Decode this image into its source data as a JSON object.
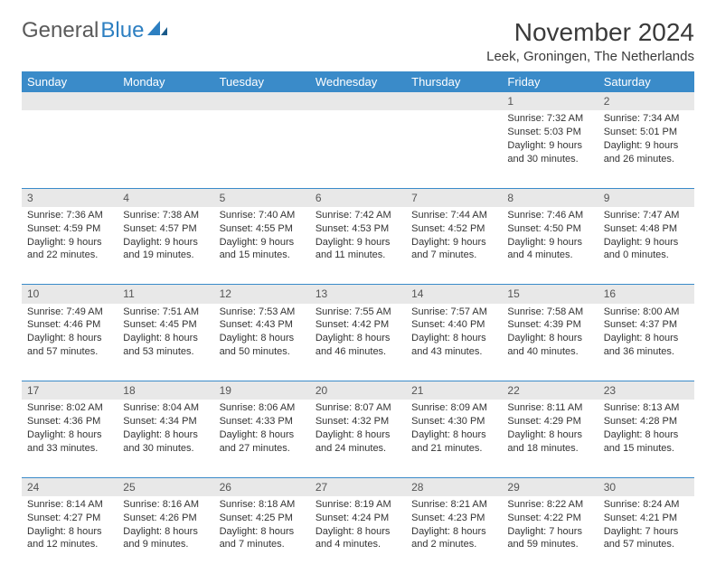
{
  "logo": {
    "text1": "General",
    "text2": "Blue"
  },
  "title": "November 2024",
  "location": "Leek, Groningen, The Netherlands",
  "colors": {
    "header_bg": "#3a8bc9",
    "header_text": "#ffffff",
    "daynum_bg": "#e8e8e8",
    "border": "#3a8bc9",
    "text": "#333333"
  },
  "weekdays": [
    "Sunday",
    "Monday",
    "Tuesday",
    "Wednesday",
    "Thursday",
    "Friday",
    "Saturday"
  ],
  "weeks": [
    [
      null,
      null,
      null,
      null,
      null,
      {
        "n": "1",
        "sr": "7:32 AM",
        "ss": "5:03 PM",
        "dl": "9 hours and 30 minutes."
      },
      {
        "n": "2",
        "sr": "7:34 AM",
        "ss": "5:01 PM",
        "dl": "9 hours and 26 minutes."
      }
    ],
    [
      {
        "n": "3",
        "sr": "7:36 AM",
        "ss": "4:59 PM",
        "dl": "9 hours and 22 minutes."
      },
      {
        "n": "4",
        "sr": "7:38 AM",
        "ss": "4:57 PM",
        "dl": "9 hours and 19 minutes."
      },
      {
        "n": "5",
        "sr": "7:40 AM",
        "ss": "4:55 PM",
        "dl": "9 hours and 15 minutes."
      },
      {
        "n": "6",
        "sr": "7:42 AM",
        "ss": "4:53 PM",
        "dl": "9 hours and 11 minutes."
      },
      {
        "n": "7",
        "sr": "7:44 AM",
        "ss": "4:52 PM",
        "dl": "9 hours and 7 minutes."
      },
      {
        "n": "8",
        "sr": "7:46 AM",
        "ss": "4:50 PM",
        "dl": "9 hours and 4 minutes."
      },
      {
        "n": "9",
        "sr": "7:47 AM",
        "ss": "4:48 PM",
        "dl": "9 hours and 0 minutes."
      }
    ],
    [
      {
        "n": "10",
        "sr": "7:49 AM",
        "ss": "4:46 PM",
        "dl": "8 hours and 57 minutes."
      },
      {
        "n": "11",
        "sr": "7:51 AM",
        "ss": "4:45 PM",
        "dl": "8 hours and 53 minutes."
      },
      {
        "n": "12",
        "sr": "7:53 AM",
        "ss": "4:43 PM",
        "dl": "8 hours and 50 minutes."
      },
      {
        "n": "13",
        "sr": "7:55 AM",
        "ss": "4:42 PM",
        "dl": "8 hours and 46 minutes."
      },
      {
        "n": "14",
        "sr": "7:57 AM",
        "ss": "4:40 PM",
        "dl": "8 hours and 43 minutes."
      },
      {
        "n": "15",
        "sr": "7:58 AM",
        "ss": "4:39 PM",
        "dl": "8 hours and 40 minutes."
      },
      {
        "n": "16",
        "sr": "8:00 AM",
        "ss": "4:37 PM",
        "dl": "8 hours and 36 minutes."
      }
    ],
    [
      {
        "n": "17",
        "sr": "8:02 AM",
        "ss": "4:36 PM",
        "dl": "8 hours and 33 minutes."
      },
      {
        "n": "18",
        "sr": "8:04 AM",
        "ss": "4:34 PM",
        "dl": "8 hours and 30 minutes."
      },
      {
        "n": "19",
        "sr": "8:06 AM",
        "ss": "4:33 PM",
        "dl": "8 hours and 27 minutes."
      },
      {
        "n": "20",
        "sr": "8:07 AM",
        "ss": "4:32 PM",
        "dl": "8 hours and 24 minutes."
      },
      {
        "n": "21",
        "sr": "8:09 AM",
        "ss": "4:30 PM",
        "dl": "8 hours and 21 minutes."
      },
      {
        "n": "22",
        "sr": "8:11 AM",
        "ss": "4:29 PM",
        "dl": "8 hours and 18 minutes."
      },
      {
        "n": "23",
        "sr": "8:13 AM",
        "ss": "4:28 PM",
        "dl": "8 hours and 15 minutes."
      }
    ],
    [
      {
        "n": "24",
        "sr": "8:14 AM",
        "ss": "4:27 PM",
        "dl": "8 hours and 12 minutes."
      },
      {
        "n": "25",
        "sr": "8:16 AM",
        "ss": "4:26 PM",
        "dl": "8 hours and 9 minutes."
      },
      {
        "n": "26",
        "sr": "8:18 AM",
        "ss": "4:25 PM",
        "dl": "8 hours and 7 minutes."
      },
      {
        "n": "27",
        "sr": "8:19 AM",
        "ss": "4:24 PM",
        "dl": "8 hours and 4 minutes."
      },
      {
        "n": "28",
        "sr": "8:21 AM",
        "ss": "4:23 PM",
        "dl": "8 hours and 2 minutes."
      },
      {
        "n": "29",
        "sr": "8:22 AM",
        "ss": "4:22 PM",
        "dl": "7 hours and 59 minutes."
      },
      {
        "n": "30",
        "sr": "8:24 AM",
        "ss": "4:21 PM",
        "dl": "7 hours and 57 minutes."
      }
    ]
  ],
  "labels": {
    "sunrise": "Sunrise:",
    "sunset": "Sunset:",
    "daylight": "Daylight:"
  }
}
